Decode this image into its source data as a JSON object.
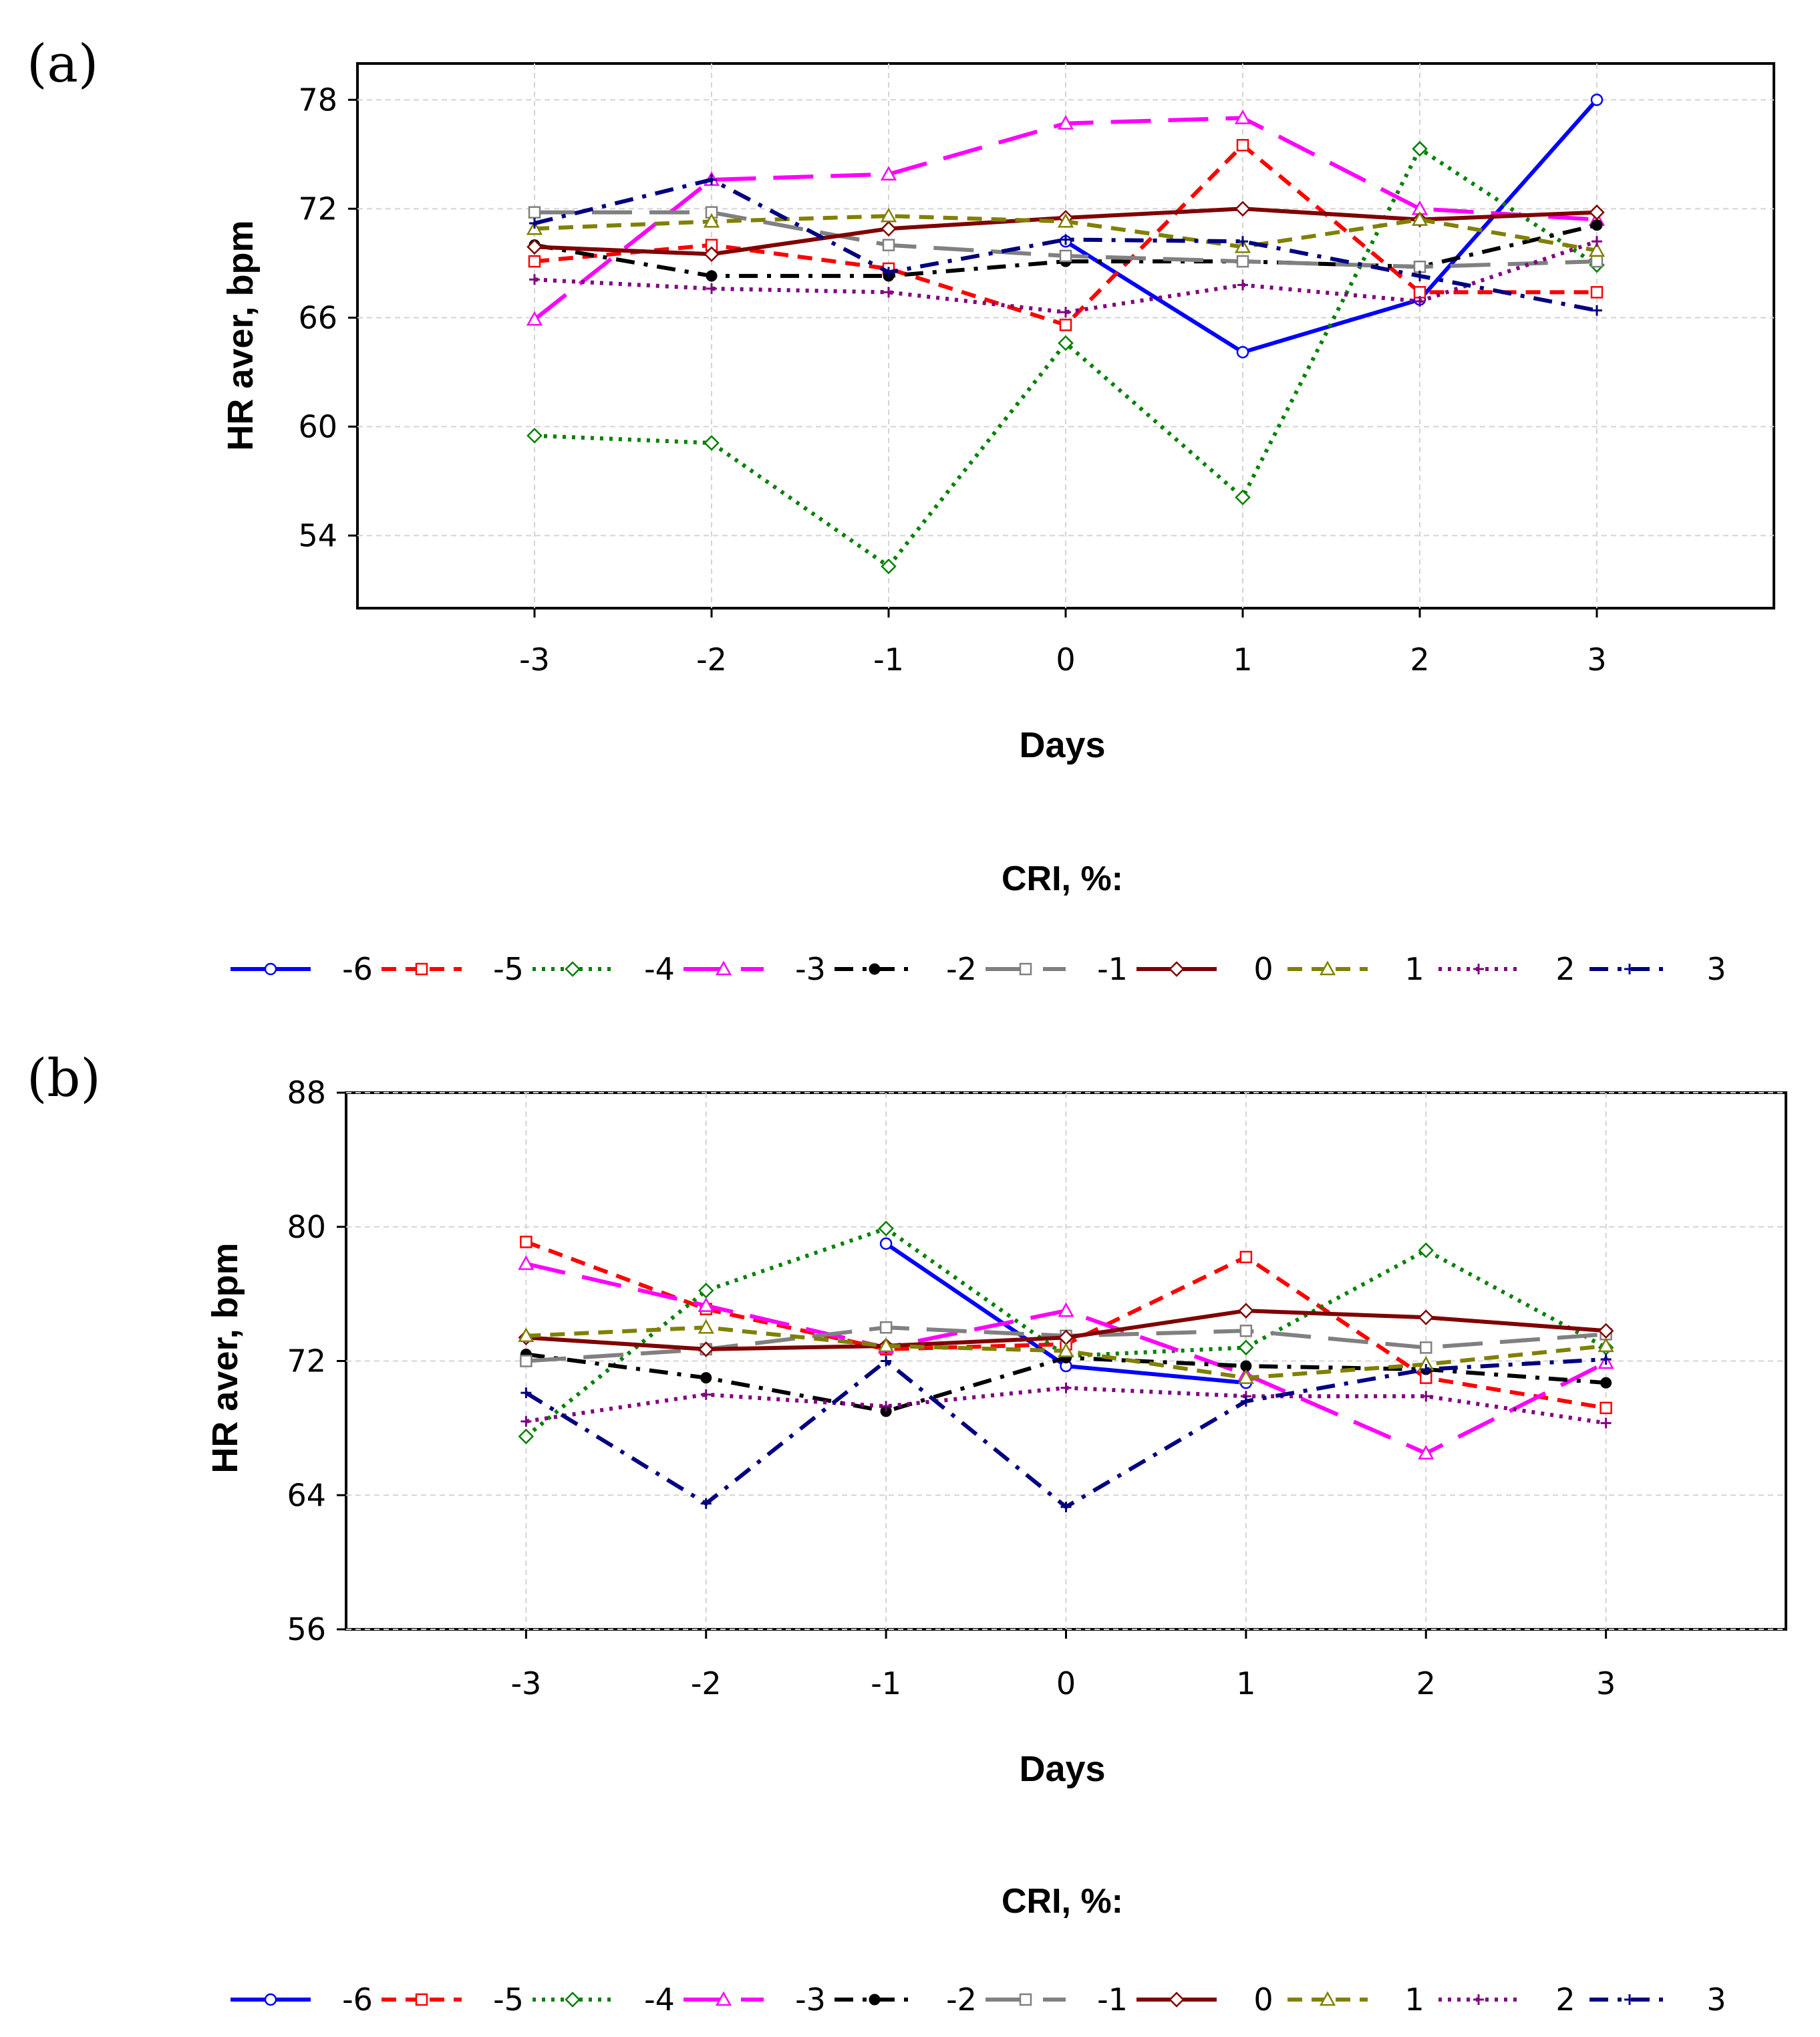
{
  "chart_data": [
    {
      "panel": "(a)",
      "type": "line",
      "xlabel": "Days",
      "ylabel": "HR aver, bpm",
      "x": [
        -3,
        -2,
        -1,
        0,
        1,
        2,
        3
      ],
      "x_ticks": [
        "-3",
        "-2",
        "-1",
        "0",
        "1",
        "2",
        "3"
      ],
      "xlim": [
        -4,
        4
      ],
      "ylim": [
        50,
        80
      ],
      "y_ticks": [
        54,
        60,
        66,
        72,
        78
      ],
      "legend_title": "CRI, %:",
      "series": [
        {
          "name": "-6",
          "color": "#0000ff",
          "dash": "solid",
          "marker": "circle",
          "values": [
            null,
            null,
            null,
            70.2,
            64.1,
            67.0,
            78.0
          ]
        },
        {
          "name": "-5",
          "color": "#ff0000",
          "dash": "dash",
          "marker": "square",
          "values": [
            69.1,
            70.0,
            68.7,
            65.6,
            75.5,
            67.4,
            67.4
          ]
        },
        {
          "name": "-4",
          "color": "#008000",
          "dash": "dot",
          "marker": "diamond",
          "values": [
            59.5,
            59.1,
            52.3,
            64.6,
            56.1,
            75.3,
            68.9
          ]
        },
        {
          "name": "-3",
          "color": "#ff00ff",
          "dash": "longdash",
          "marker": "triangle",
          "values": [
            65.9,
            73.6,
            73.9,
            76.7,
            77.0,
            72.0,
            71.4
          ]
        },
        {
          "name": "-2",
          "color": "#000000",
          "dash": "dashdot",
          "marker": "dot",
          "values": [
            70.0,
            68.3,
            68.3,
            69.1,
            69.1,
            68.8,
            71.1
          ]
        },
        {
          "name": "-1",
          "color": "#808080",
          "dash": "longdash",
          "marker": "square",
          "values": [
            71.8,
            71.8,
            70.0,
            69.4,
            69.1,
            68.8,
            69.1
          ]
        },
        {
          "name": "0",
          "color": "#800000",
          "dash": "solid",
          "marker": "diamond",
          "values": [
            69.9,
            69.5,
            70.9,
            71.5,
            72.0,
            71.4,
            71.8
          ]
        },
        {
          "name": "1",
          "color": "#808000",
          "dash": "dash",
          "marker": "triangle",
          "values": [
            70.9,
            71.3,
            71.6,
            71.3,
            69.9,
            71.4,
            69.7
          ]
        },
        {
          "name": "2",
          "color": "#800080",
          "dash": "dot",
          "marker": "plus",
          "values": [
            68.1,
            67.6,
            67.4,
            66.3,
            67.8,
            66.9,
            70.2
          ]
        },
        {
          "name": "3",
          "color": "#000080",
          "dash": "dashdot",
          "marker": "plus",
          "values": [
            71.2,
            73.6,
            68.5,
            70.3,
            70.2,
            68.3,
            66.4
          ]
        }
      ]
    },
    {
      "panel": "(b)",
      "type": "line",
      "xlabel": "Days",
      "ylabel": "HR aver, bpm",
      "x": [
        -3,
        -2,
        -1,
        0,
        1,
        2,
        3
      ],
      "x_ticks": [
        "-3",
        "-2",
        "-1",
        "0",
        "1",
        "2",
        "3"
      ],
      "xlim": [
        -4,
        4
      ],
      "ylim": [
        56,
        88
      ],
      "y_ticks": [
        56,
        64,
        72,
        80,
        88
      ],
      "legend_title": "CRI, %:",
      "series": [
        {
          "name": "-6",
          "color": "#0000ff",
          "dash": "solid",
          "marker": "circle",
          "values": [
            null,
            null,
            79.0,
            71.7,
            70.7,
            null,
            null
          ]
        },
        {
          "name": "-5",
          "color": "#ff0000",
          "dash": "dash",
          "marker": "square",
          "values": [
            79.1,
            75.1,
            72.7,
            73.0,
            78.2,
            71.0,
            69.2
          ]
        },
        {
          "name": "-4",
          "color": "#008000",
          "dash": "dot",
          "marker": "diamond",
          "values": [
            67.5,
            76.2,
            79.9,
            72.3,
            72.8,
            78.6,
            72.8
          ]
        },
        {
          "name": "-3",
          "color": "#ff00ff",
          "dash": "longdash",
          "marker": "triangle",
          "values": [
            77.8,
            75.3,
            72.8,
            75.0,
            71.2,
            66.5,
            71.9
          ]
        },
        {
          "name": "-2",
          "color": "#000000",
          "dash": "dashdot",
          "marker": "dot",
          "values": [
            72.4,
            71.0,
            69.0,
            72.2,
            71.7,
            71.5,
            70.7
          ]
        },
        {
          "name": "-1",
          "color": "#808080",
          "dash": "longdash",
          "marker": "square",
          "values": [
            72.0,
            72.7,
            74.0,
            73.5,
            73.8,
            72.8,
            73.6
          ]
        },
        {
          "name": "0",
          "color": "#800000",
          "dash": "solid",
          "marker": "diamond",
          "values": [
            73.4,
            72.7,
            72.9,
            73.4,
            75.0,
            74.6,
            73.8
          ]
        },
        {
          "name": "1",
          "color": "#808000",
          "dash": "dash",
          "marker": "triangle",
          "values": [
            73.5,
            74.0,
            72.9,
            72.6,
            71.0,
            71.8,
            72.9
          ]
        },
        {
          "name": "2",
          "color": "#800080",
          "dash": "dot",
          "marker": "plus",
          "values": [
            68.4,
            70.0,
            69.3,
            70.4,
            69.9,
            69.9,
            68.3
          ]
        },
        {
          "name": "3",
          "color": "#000080",
          "dash": "dashdot",
          "marker": "plus",
          "values": [
            70.1,
            63.5,
            72.0,
            63.3,
            69.6,
            71.5,
            72.1
          ]
        }
      ]
    }
  ]
}
